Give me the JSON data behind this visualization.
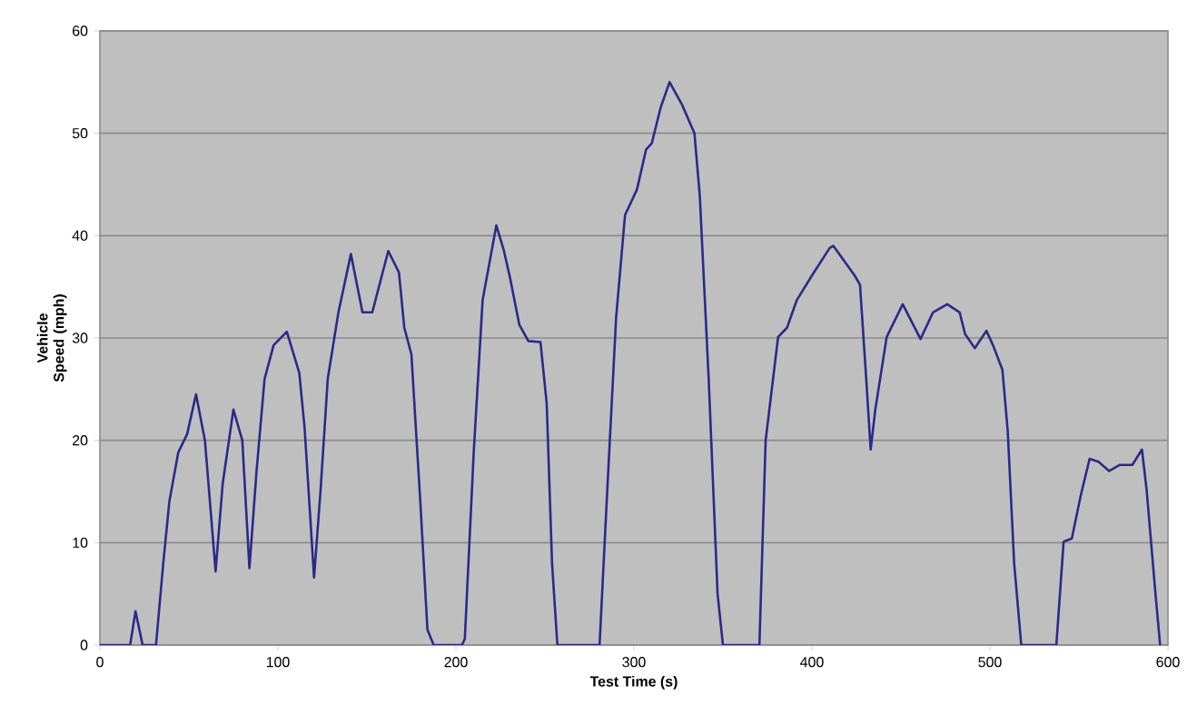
{
  "chart_data": {
    "type": "line",
    "xlabel": "Test Time (s)",
    "ylabel": "Vehicle Speed (mph)",
    "xlim": [
      0,
      600
    ],
    "ylim": [
      0,
      60
    ],
    "xticks": [
      0,
      100,
      200,
      300,
      400,
      500,
      600
    ],
    "yticks": [
      0,
      10,
      20,
      30,
      40,
      50,
      60
    ],
    "grid": "y",
    "marker": "none",
    "line_style": "solid",
    "series": [
      {
        "color": "#2a2a8a",
        "x": [
          0,
          17,
          20,
          24,
          31.5,
          35.6,
          39,
          44,
          49,
          54,
          59,
          65,
          69,
          75,
          80,
          84,
          88,
          92.5,
          97.6,
          105,
          112,
          115,
          120.3,
          124,
          128,
          134,
          141,
          147.5,
          153,
          162,
          168,
          171,
          175,
          180,
          184,
          187.5,
          203.4,
          205,
          210,
          215,
          222.7,
          227,
          230.5,
          235.6,
          240.7,
          247.5,
          251,
          254,
          257,
          280.7,
          284.7,
          290,
          295,
          301.7,
          306.8,
          310,
          315,
          320,
          327,
          334,
          337,
          342,
          347,
          350,
          370.5,
          374,
          381,
          386,
          391.5,
          400,
          410,
          412,
          424,
          427,
          430.5,
          433,
          435.6,
          442,
          451,
          461,
          468,
          476,
          483,
          486,
          491.5,
          498,
          501.7,
          507,
          510,
          513.6,
          517.6,
          537.3,
          541.4,
          546,
          551,
          556,
          561,
          567,
          573,
          580,
          585.4,
          588,
          593,
          595.6
        ],
        "values": [
          0,
          0,
          3.3,
          0,
          0,
          8,
          14,
          18.8,
          20.6,
          24.5,
          20,
          7.2,
          15.8,
          23,
          20,
          7.5,
          17,
          26,
          29.3,
          30.6,
          26.6,
          21.2,
          6.6,
          15.2,
          26,
          32.5,
          38.2,
          32.5,
          32.5,
          38.5,
          36.4,
          31,
          28.4,
          14,
          1.5,
          0,
          0,
          0.6,
          18.8,
          33.7,
          41,
          38.5,
          35.8,
          31.3,
          29.7,
          29.6,
          23.6,
          8,
          0,
          0,
          14,
          32,
          42,
          44.5,
          48.4,
          49,
          52.5,
          55,
          52.8,
          50,
          43.9,
          26,
          5,
          0,
          0,
          20,
          30.1,
          31,
          33.7,
          36.1,
          38.8,
          39,
          36.1,
          35.2,
          26,
          19.1,
          23,
          30.1,
          33.3,
          29.9,
          32.5,
          33.3,
          32.5,
          30.4,
          29,
          30.7,
          29.3,
          26.9,
          20.9,
          8,
          0,
          0,
          10.1,
          10.4,
          14.6,
          18.2,
          17.9,
          17,
          17.6,
          17.6,
          19.1,
          15.2,
          5,
          0
        ]
      }
    ]
  }
}
